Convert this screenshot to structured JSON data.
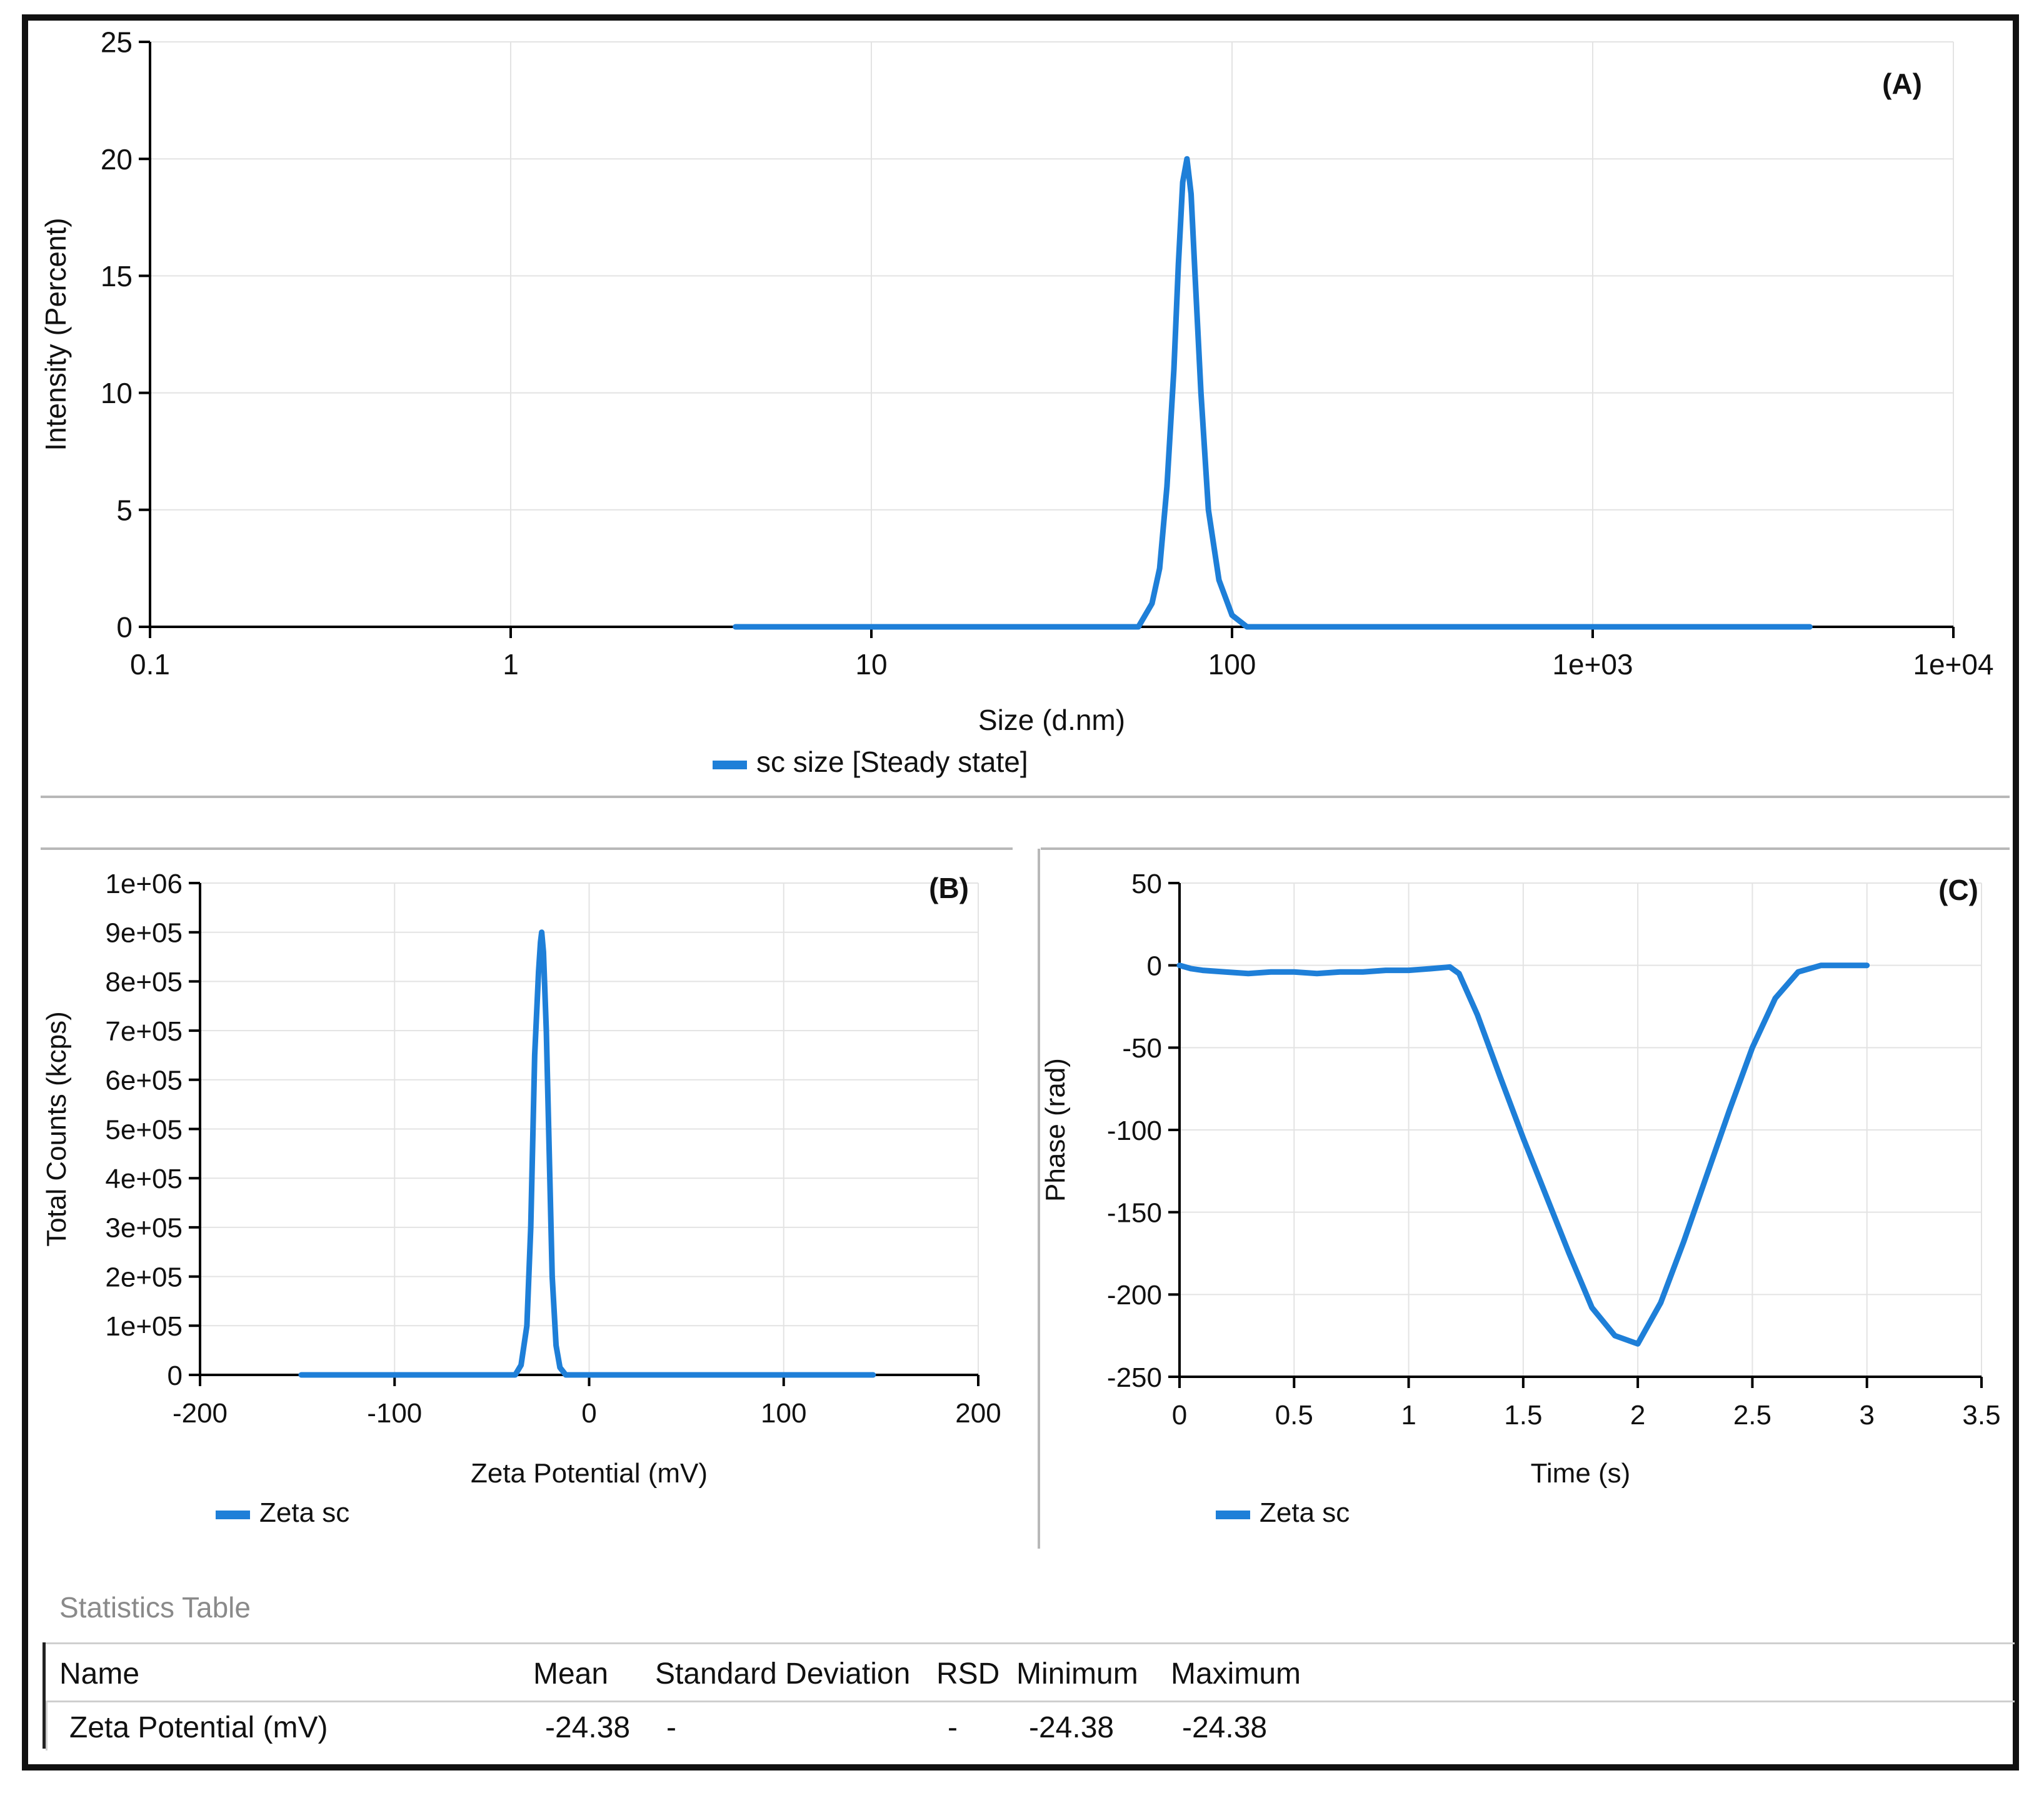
{
  "colors": {
    "series": "#1e7fd8",
    "axis": "#000000",
    "grid": "#e3e3e3",
    "frame": "#111111",
    "divider": "#b8b8b8"
  },
  "chart_data": [
    {
      "id": "A",
      "type": "line",
      "panel_label": "(A)",
      "xscale": "log",
      "xlim": [
        0.1,
        10000
      ],
      "ylim": [
        0,
        25
      ],
      "xticks": [
        0.1,
        1,
        10,
        100,
        1000,
        10000
      ],
      "xtick_labels": [
        "0.1",
        "1",
        "10",
        "100",
        "1e+03",
        "1e+04"
      ],
      "yticks": [
        0,
        5,
        10,
        15,
        20,
        25
      ],
      "ytick_labels": [
        "0",
        "5",
        "10",
        "15",
        "20",
        "25"
      ],
      "xlabel": "Size (d.nm)",
      "ylabel": "Intensity (Percent)",
      "legend": [
        "sc size [Steady state]"
      ],
      "grid": true,
      "series": [
        {
          "name": "sc size [Steady state]",
          "x": [
            4.2,
            10,
            30,
            55,
            60,
            63,
            66,
            69,
            71,
            73,
            75,
            77,
            79,
            82,
            86,
            92,
            100,
            110,
            300,
            1000,
            4000
          ],
          "y": [
            0,
            0,
            0,
            0,
            1,
            2.5,
            6,
            11,
            15.5,
            19,
            20,
            18.5,
            15,
            10,
            5,
            2,
            0.5,
            0,
            0,
            0,
            0
          ]
        }
      ]
    },
    {
      "id": "B",
      "type": "line",
      "panel_label": "(B)",
      "xlim": [
        -200,
        200
      ],
      "ylim": [
        0,
        1000000
      ],
      "xticks": [
        -200,
        -100,
        0,
        100,
        200
      ],
      "xtick_labels": [
        "-200",
        "-100",
        "0",
        "100",
        "200"
      ],
      "yticks": [
        0,
        100000,
        200000,
        300000,
        400000,
        500000,
        600000,
        700000,
        800000,
        900000,
        1000000
      ],
      "ytick_labels": [
        "0",
        "1e+05",
        "2e+05",
        "3e+05",
        "4e+05",
        "5e+05",
        "6e+05",
        "7e+05",
        "8e+05",
        "9e+05",
        "1e+06"
      ],
      "xlabel": "Zeta Potential (mV)",
      "ylabel": "Total Counts (kcps)",
      "legend": [
        "Zeta sc"
      ],
      "grid": true,
      "series": [
        {
          "name": "Zeta sc",
          "x": [
            -148,
            -60,
            -38,
            -35,
            -32,
            -30,
            -28,
            -26,
            -25,
            -24.4,
            -23.5,
            -22,
            -20.5,
            -19,
            -17,
            -15,
            -12,
            0,
            100,
            146
          ],
          "y": [
            0,
            0,
            0,
            20000,
            100000,
            300000,
            650000,
            820000,
            880000,
            900000,
            860000,
            700000,
            450000,
            200000,
            60000,
            15000,
            0,
            0,
            0,
            0
          ]
        }
      ]
    },
    {
      "id": "C",
      "type": "line",
      "panel_label": "(C)",
      "xlim": [
        0,
        3.5
      ],
      "ylim": [
        -250,
        50
      ],
      "xticks": [
        0,
        0.5,
        1,
        1.5,
        2,
        2.5,
        3,
        3.5
      ],
      "xtick_labels": [
        "0",
        "0.5",
        "1",
        "1.5",
        "2",
        "2.5",
        "3",
        "3.5"
      ],
      "yticks": [
        -250,
        -200,
        -150,
        -100,
        -50,
        0,
        50
      ],
      "ytick_labels": [
        "-250",
        "-200",
        "-150",
        "-100",
        "-50",
        "0",
        "50"
      ],
      "xlabel": "Time (s)",
      "ylabel": "Phase (rad)",
      "legend": [
        "Zeta sc"
      ],
      "grid": true,
      "series": [
        {
          "name": "Zeta sc",
          "x": [
            0,
            0.05,
            0.1,
            0.2,
            0.3,
            0.4,
            0.5,
            0.6,
            0.7,
            0.8,
            0.9,
            1.0,
            1.1,
            1.18,
            1.22,
            1.3,
            1.4,
            1.5,
            1.6,
            1.7,
            1.8,
            1.9,
            2.0,
            2.1,
            2.2,
            2.3,
            2.4,
            2.5,
            2.6,
            2.7,
            2.8,
            2.9,
            3.0
          ],
          "y": [
            0,
            -2,
            -3,
            -4,
            -5,
            -4,
            -4,
            -5,
            -4,
            -4,
            -3,
            -3,
            -2,
            -1,
            -5,
            -30,
            -68,
            -105,
            -140,
            -175,
            -208,
            -225,
            -230,
            -205,
            -168,
            -128,
            -88,
            -50,
            -20,
            -4,
            0,
            0,
            0
          ]
        }
      ]
    }
  ],
  "statistics": {
    "title": "Statistics Table",
    "headers": [
      "Name",
      "Mean",
      "Standard Deviation",
      "RSD",
      "Minimum",
      "Maximum"
    ],
    "row": [
      "Zeta Potential (mV)",
      "-24.38",
      "-",
      "-",
      "-24.38",
      "-24.38"
    ]
  }
}
